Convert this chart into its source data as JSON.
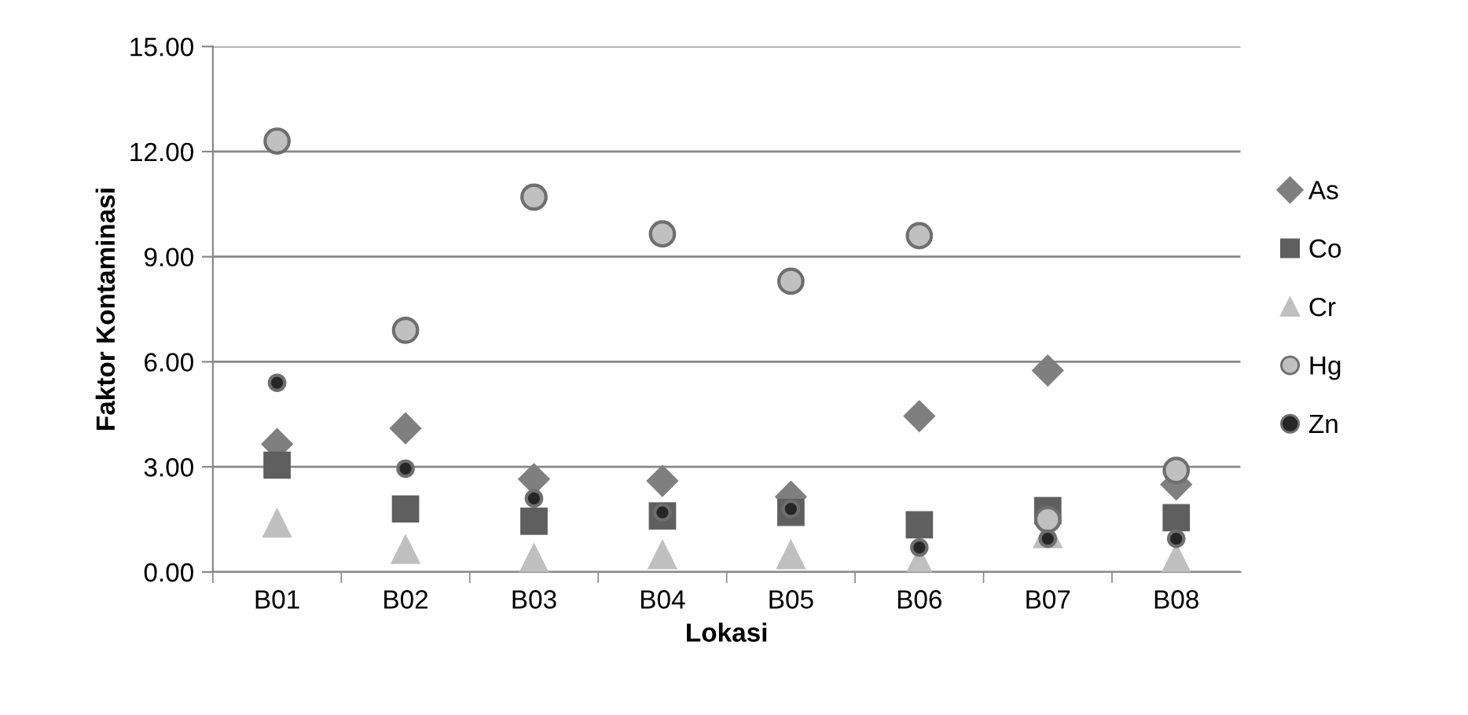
{
  "chart_data": {
    "type": "scatter",
    "xlabel": "Lokasi",
    "ylabel": "Faktor Kontaminasi",
    "categories": [
      "B01",
      "B02",
      "B03",
      "B04",
      "B05",
      "B06",
      "B07",
      "B08"
    ],
    "series": [
      {
        "name": "As",
        "color": "#7f7f7f",
        "marker": "diamond",
        "values": [
          3.65,
          4.1,
          2.65,
          2.6,
          2.15,
          4.45,
          5.75,
          2.5
        ]
      },
      {
        "name": "Co",
        "color": "#5f5f5f",
        "marker": "square",
        "values": [
          3.05,
          1.8,
          1.45,
          1.6,
          1.7,
          1.35,
          1.75,
          1.55
        ]
      },
      {
        "name": "Cr",
        "color": "#bfbfbf",
        "marker": "triangle",
        "values": [
          1.4,
          0.65,
          0.4,
          0.5,
          0.5,
          0.3,
          1.1,
          0.4
        ]
      },
      {
        "name": "Hg",
        "color": "#c0c0c0",
        "marker": "circle",
        "values": [
          12.3,
          6.9,
          10.7,
          9.65,
          8.3,
          9.6,
          1.5,
          2.9
        ]
      },
      {
        "name": "Zn",
        "color": "#262626",
        "marker": "circle",
        "values": [
          5.4,
          2.95,
          2.1,
          1.7,
          1.8,
          0.7,
          0.95,
          0.95
        ]
      }
    ],
    "ylim": [
      0,
      15
    ],
    "yticks": [
      {
        "value": 0,
        "label": "0.00"
      },
      {
        "value": 3,
        "label": "3.00"
      },
      {
        "value": 6,
        "label": "6.00"
      },
      {
        "value": 9,
        "label": "9.00"
      },
      {
        "value": 12,
        "label": "12.00"
      },
      {
        "value": 15,
        "label": "15.00"
      }
    ],
    "grid": "y",
    "legend": "right"
  }
}
